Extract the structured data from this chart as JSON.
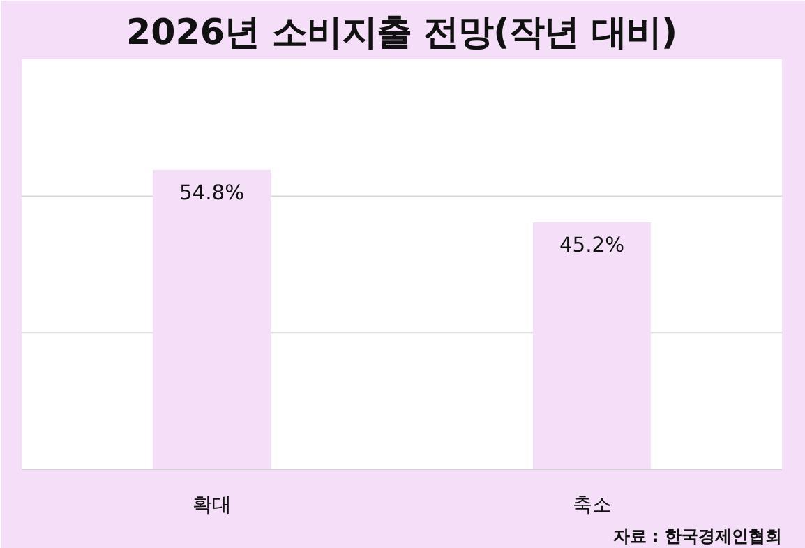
{
  "chart_data": {
    "type": "bar",
    "title": "2026년 소비지출 전망(작년 대비)",
    "categories": [
      "확대",
      "축소"
    ],
    "values": [
      54.8,
      45.2
    ],
    "value_labels": [
      "54.8%",
      "45.2%"
    ],
    "color": "#f5dff8",
    "tick_labels": "x",
    "ref_lines": [
      {
        "axis": "y",
        "value": 25,
        "color": "#d8d8d8"
      },
      {
        "axis": "y",
        "value": 50,
        "color": "#d8d8d8"
      }
    ],
    "annotations": [
      "자료 : 한국경제인협회"
    ]
  }
}
